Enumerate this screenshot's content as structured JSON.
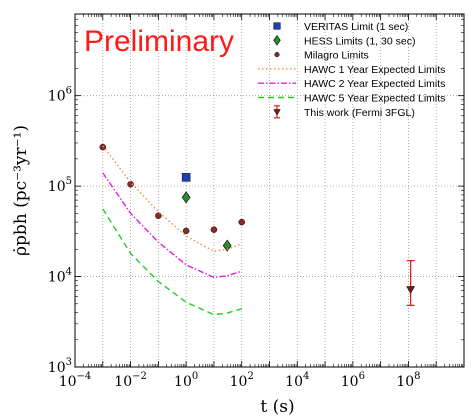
{
  "chart_data": {
    "type": "scatter",
    "watermark": "Preliminary",
    "xlabel": "t (s)",
    "ylabel": "ρ̇pbh (pc⁻³yr⁻¹)",
    "xscale": "log",
    "yscale": "log",
    "xlim": [
      0.0001,
      10000000000
    ],
    "ylim": [
      1000,
      8000000
    ],
    "x_ticks": [
      {
        "value": 0.0001,
        "base": "10",
        "exp": "−4"
      },
      {
        "value": 0.01,
        "base": "10",
        "exp": "−2"
      },
      {
        "value": 1,
        "base": "10",
        "exp": "0"
      },
      {
        "value": 100,
        "base": "10",
        "exp": "2"
      },
      {
        "value": 10000,
        "base": "10",
        "exp": "4"
      },
      {
        "value": 1000000,
        "base": "10",
        "exp": "6"
      },
      {
        "value": 100000000,
        "base": "10",
        "exp": "8"
      }
    ],
    "y_ticks": [
      {
        "value": 1000,
        "base": "10",
        "exp": "3"
      },
      {
        "value": 10000,
        "base": "10",
        "exp": "4"
      },
      {
        "value": 100000,
        "base": "10",
        "exp": "5"
      },
      {
        "value": 1000000,
        "base": "10",
        "exp": "6"
      }
    ],
    "grid": true,
    "legend_position": "top-right",
    "series": [
      {
        "name": "VERITAS Limit (1 sec)",
        "kind": "points",
        "marker": "square",
        "color": "#1f3fb4",
        "x": [
          1
        ],
        "y": [
          125000
        ]
      },
      {
        "name": "HESS Limits (1, 30 sec)",
        "kind": "points",
        "marker": "diamond",
        "color": "#2e8b2e",
        "x": [
          1,
          30
        ],
        "y": [
          75000,
          22000
        ]
      },
      {
        "name": "Milagro Limits",
        "kind": "points",
        "marker": "circle",
        "color": "#8b2a2a",
        "x": [
          0.001,
          0.01,
          0.1,
          1,
          10,
          100
        ],
        "y": [
          270000,
          105000,
          47000,
          32000,
          33000,
          40000
        ]
      },
      {
        "name": "HAWC 1 Year Expected Limits",
        "kind": "line",
        "dash": "1.5 2.5",
        "color": "#f08a4b",
        "x": [
          0.001,
          0.01,
          0.1,
          1,
          10,
          30,
          100
        ],
        "y": [
          280000,
          110000,
          52000,
          28000,
          19000,
          20000,
          23000
        ]
      },
      {
        "name": "HAWC 2 Year Expected Limits",
        "kind": "line",
        "dash": "6 2 1.5 2",
        "color": "#dd22dd",
        "x": [
          0.001,
          0.01,
          0.1,
          1,
          10,
          30,
          100
        ],
        "y": [
          140000,
          50000,
          24000,
          13500,
          9800,
          10200,
          11500
        ]
      },
      {
        "name": "HAWC 5 Year Expected Limits",
        "kind": "line",
        "dash": "6 4",
        "color": "#22cc22",
        "x": [
          0.001,
          0.01,
          0.1,
          1,
          10,
          30,
          100
        ],
        "y": [
          56000,
          18000,
          8800,
          5200,
          3800,
          3950,
          4400
        ]
      },
      {
        "name": "This work (Fermi 3FGL)",
        "kind": "errorbar",
        "marker": "triangle-down",
        "color": "#dd2222",
        "marker_color": "#7a1a1a",
        "x": [
          120000000
        ],
        "y": [
          7200
        ],
        "y_low": [
          4800
        ],
        "y_high": [
          15000
        ]
      }
    ]
  }
}
